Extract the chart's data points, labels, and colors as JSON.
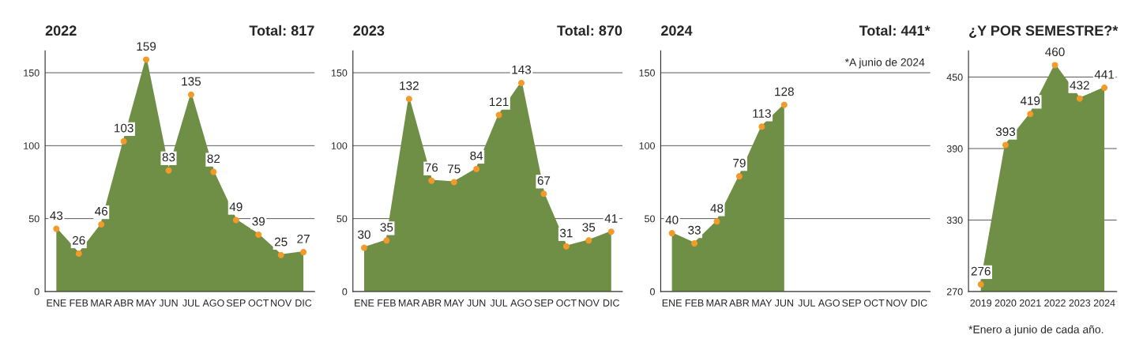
{
  "chart_data": [
    {
      "type": "area",
      "title": "2022",
      "subtitle": "Total: 817",
      "categories": [
        "ENE",
        "FEB",
        "MAR",
        "ABR",
        "MAY",
        "JUN",
        "JUL",
        "AGO",
        "SEP",
        "OCT",
        "NOV",
        "DIC"
      ],
      "series": [
        {
          "color": "#6e8f45",
          "values": [
            43,
            26,
            46,
            103,
            159,
            83,
            135,
            82,
            49,
            39,
            25,
            27
          ]
        }
      ],
      "ylim": [
        0,
        165
      ],
      "yticks": [
        0,
        50,
        100,
        150
      ],
      "grid": "y",
      "marker": "circle",
      "data_labels": true
    },
    {
      "type": "area",
      "title": "2023",
      "subtitle": "Total: 870",
      "categories": [
        "ENE",
        "FEB",
        "MAR",
        "ABR",
        "MAY",
        "JUN",
        "JUL",
        "AGO",
        "SEP",
        "OCT",
        "NOV",
        "DIC"
      ],
      "series": [
        {
          "color": "#6e8f45",
          "values": [
            30,
            35,
            132,
            76,
            75,
            84,
            121,
            143,
            67,
            31,
            35,
            41
          ]
        }
      ],
      "ylim": [
        0,
        165
      ],
      "yticks": [
        0,
        50,
        100,
        150
      ],
      "grid": "y",
      "marker": "circle",
      "data_labels": true
    },
    {
      "type": "area",
      "title": "2024",
      "subtitle": "Total: 441*",
      "categories": [
        "ENE",
        "FEB",
        "MAR",
        "ABR",
        "MAY",
        "JUN",
        "JUL",
        "AGO",
        "SEP",
        "OCT",
        "NOV",
        "DIC"
      ],
      "series": [
        {
          "color": "#6e8f45",
          "values": [
            40,
            33,
            48,
            79,
            113,
            128,
            null,
            null,
            null,
            null,
            null,
            null
          ]
        }
      ],
      "ylim": [
        0,
        165
      ],
      "yticks": [
        0,
        50,
        100,
        150
      ],
      "grid": "y",
      "marker": "circle",
      "data_labels": true,
      "annotations": [
        "*A junio de 2024"
      ]
    },
    {
      "type": "area",
      "title": "¿Y POR SEMESTRE?*",
      "categories": [
        "2019",
        "2020",
        "2021",
        "2022",
        "2023",
        "2024"
      ],
      "series": [
        {
          "color": "#6e8f45",
          "values": [
            276,
            393,
            419,
            460,
            432,
            441
          ]
        }
      ],
      "ylim": [
        270,
        472
      ],
      "yticks": [
        270,
        330,
        390,
        450
      ],
      "grid": "y",
      "marker": "circle",
      "data_labels": true,
      "annotations": [
        "*Enero a junio de cada año."
      ]
    }
  ]
}
